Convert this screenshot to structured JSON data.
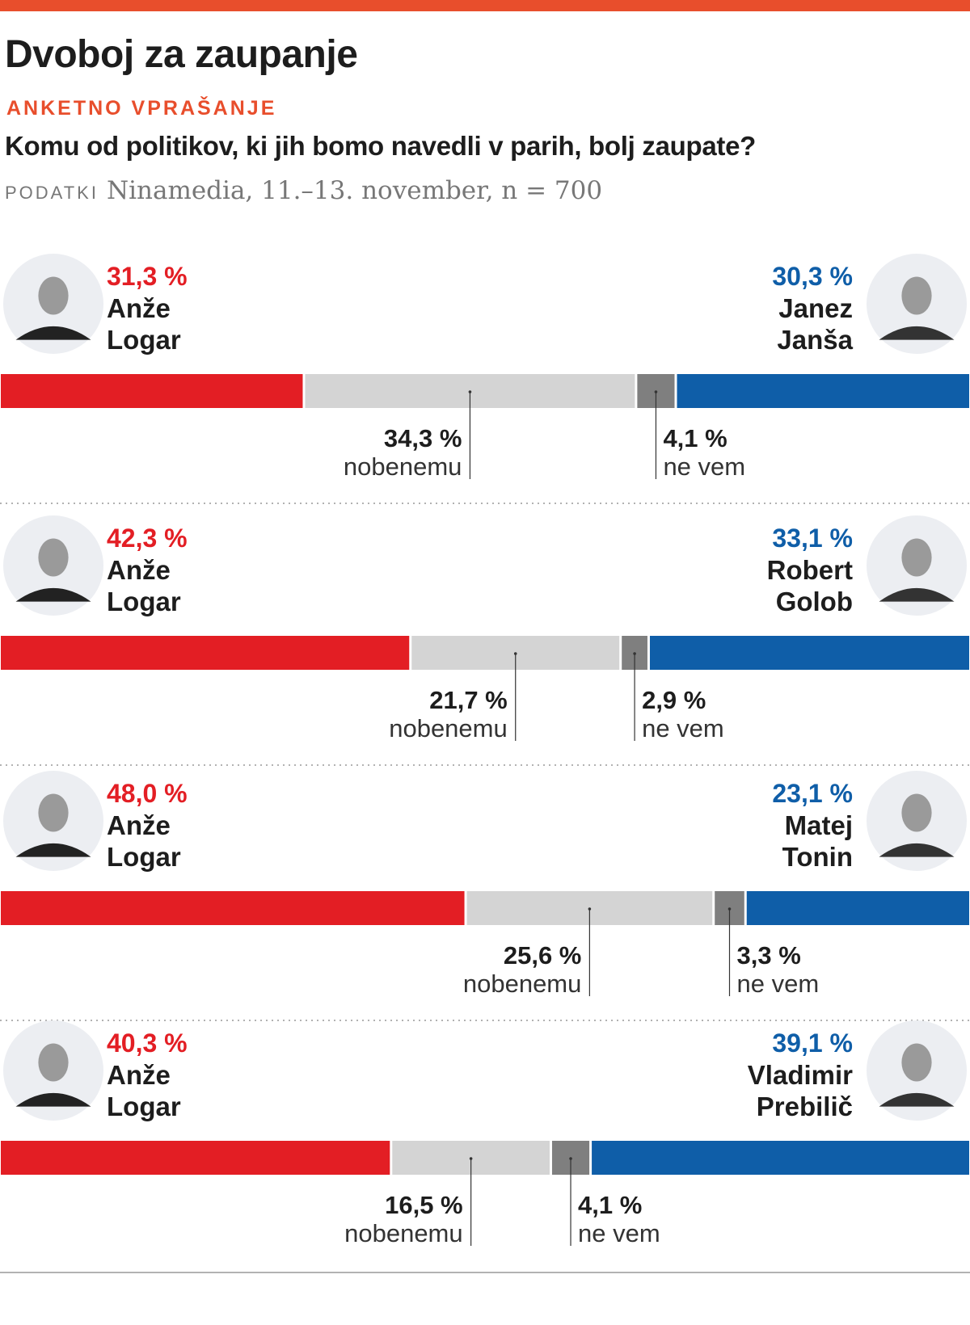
{
  "header": {
    "title": "Dvoboj za zaupanje",
    "kicker": "ANKETNO VPRAŠANJE",
    "question": "Komu od politikov, ki jih bomo navedli v parih, bolj zaupate?",
    "source_label": "PODATKI",
    "source_text": "Ninamedia, 11.–13. november, n = 700"
  },
  "colors": {
    "accent": "#e84e2c",
    "left": "#e31e24",
    "right": "#0f5ea8",
    "none": "#d4d4d4",
    "dontknow": "#7f7f7f",
    "text": "#1d1d1d"
  },
  "chart_data": {
    "type": "bar",
    "orientation": "horizontal-stacked-100",
    "title": "Dvoboj za zaupanje",
    "segment_order": [
      "left_candidate",
      "nobenemu",
      "ne vem",
      "right_candidate"
    ],
    "segment_labels": {
      "none": "nobenemu",
      "dontknow": "ne vem"
    },
    "pairs": [
      {
        "left": {
          "first": "Anže",
          "last": "Logar",
          "value": 31.3,
          "label": "31,3 %"
        },
        "none": {
          "value": 34.3,
          "label": "34,3 %"
        },
        "dontknow": {
          "value": 4.1,
          "label": "4,1 %"
        },
        "right": {
          "first": "Janez",
          "last": "Janša",
          "value": 30.3,
          "label": "30,3 %"
        }
      },
      {
        "left": {
          "first": "Anže",
          "last": "Logar",
          "value": 42.3,
          "label": "42,3 %"
        },
        "none": {
          "value": 21.7,
          "label": "21,7 %"
        },
        "dontknow": {
          "value": 2.9,
          "label": "2,9 %"
        },
        "right": {
          "first": "Robert",
          "last": "Golob",
          "value": 33.1,
          "label": "33,1 %"
        }
      },
      {
        "left": {
          "first": "Anže",
          "last": "Logar",
          "value": 48.0,
          "label": "48,0 %"
        },
        "none": {
          "value": 25.6,
          "label": "25,6 %"
        },
        "dontknow": {
          "value": 3.3,
          "label": "3,3 %"
        },
        "right": {
          "first": "Matej",
          "last": "Tonin",
          "value": 23.1,
          "label": "23,1 %"
        }
      },
      {
        "left": {
          "first": "Anže",
          "last": "Logar",
          "value": 40.3,
          "label": "40,3 %"
        },
        "none": {
          "value": 16.5,
          "label": "16,5 %"
        },
        "dontknow": {
          "value": 4.1,
          "label": "4,1 %"
        },
        "right": {
          "first": "Vladimir",
          "last": "Prebilič",
          "value": 39.1,
          "label": "39,1 %"
        }
      }
    ]
  }
}
